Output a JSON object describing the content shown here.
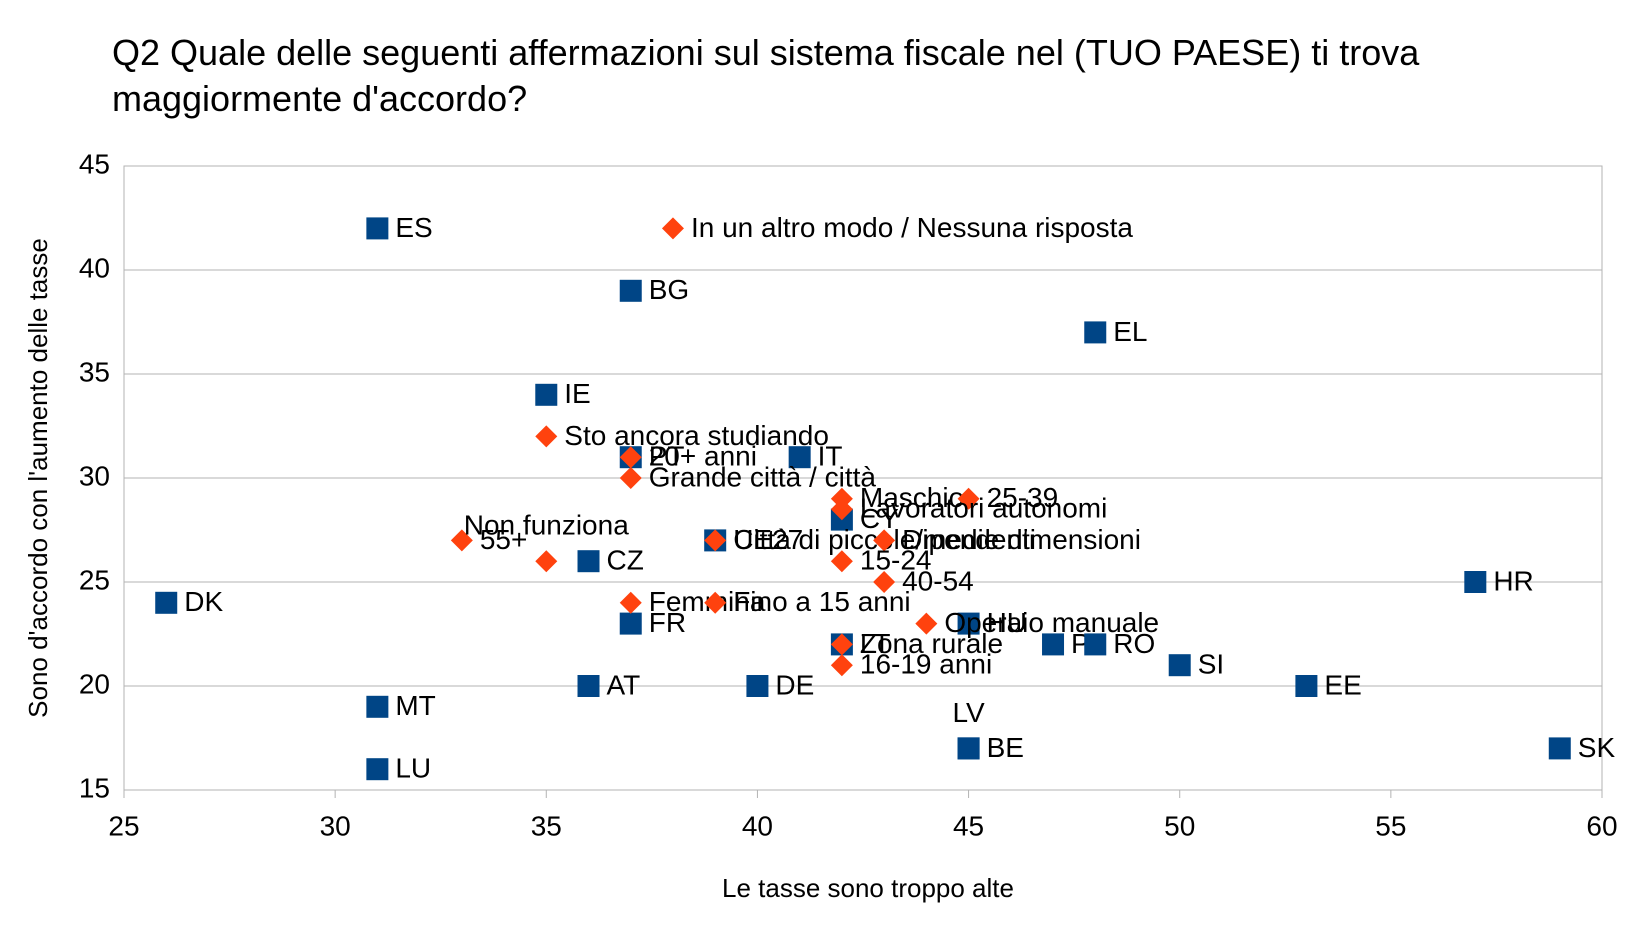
{
  "chart_data": {
    "type": "scatter",
    "title": "Q2 Quale delle seguenti affermazioni sul sistema fiscale nel (TUO PAESE) ti trova maggiormente d'accordo?",
    "x_label": "Le tasse sono troppo alte",
    "y_label": "Sono d'accordo con l'aumento delle tasse",
    "xlim": [
      25,
      60
    ],
    "xticks": [
      25,
      30,
      35,
      40,
      45,
      50,
      55,
      60
    ],
    "ylim": [
      15,
      45
    ],
    "yticks": [
      15,
      20,
      25,
      30,
      35,
      40,
      45
    ],
    "grid": true,
    "series": [
      {
        "color": "#004586",
        "marker": "square",
        "labels": [
          "ES",
          "BG",
          "EL",
          "IE",
          "PT",
          "IT",
          "CY",
          "UE27",
          "CZ",
          "DK",
          "HR",
          "FR",
          "HU",
          "PL",
          "RO",
          "LT",
          "SI",
          "AT",
          "DE",
          "EE",
          "MT",
          "LV",
          "BE",
          "LU",
          "SK"
        ],
        "x": [
          31,
          37,
          48,
          35,
          37,
          41,
          42,
          39,
          36,
          26,
          57,
          37,
          45,
          47,
          48,
          42,
          50,
          36,
          40,
          53,
          31,
          45,
          45,
          31,
          59
        ],
        "y": [
          42,
          39,
          37,
          34,
          31,
          31,
          28,
          27,
          26,
          24,
          25,
          23,
          23,
          22,
          22,
          22,
          21,
          20,
          20,
          20,
          19,
          17,
          17,
          16,
          17
        ],
        "label_position": [
          "right",
          "right",
          "right",
          "right",
          "right",
          "right",
          "right",
          "right",
          "right",
          "right",
          "right",
          "right",
          "right",
          "right",
          "right",
          "right",
          "right",
          "right",
          "right",
          "right",
          "right",
          "above",
          "right",
          "right",
          "right"
        ]
      },
      {
        "color": "#ff420e",
        "marker": "diamond",
        "labels": [
          "In un altro modo / Nessuna risposta",
          "Sto ancora studiando",
          "20+ anni",
          "Grande città / città",
          "Maschio",
          "25-39",
          "Lavoratori autonomi",
          "55+",
          "Non funziona",
          "Città di piccole/medie dimensioni",
          "Dipendenti",
          "15-24",
          "40-54",
          "Femmina",
          "Fino a 15 anni",
          "Operaio manuale",
          "Zona rurale",
          "16-19 anni"
        ],
        "x": [
          38,
          35,
          37,
          37,
          42,
          45,
          42,
          33,
          35,
          39,
          43,
          42,
          43,
          37,
          39,
          44,
          42,
          42
        ],
        "y": [
          42,
          32,
          31,
          30,
          29,
          29,
          28.5,
          27,
          26,
          27,
          27,
          26,
          25,
          24,
          24,
          23,
          22,
          21
        ],
        "label_position": [
          "right",
          "right",
          "right",
          "right",
          "right",
          "right",
          "right",
          "right",
          "above",
          "right",
          "right",
          "right",
          "right",
          "right",
          "right",
          "right",
          "right",
          "right"
        ]
      }
    ]
  }
}
